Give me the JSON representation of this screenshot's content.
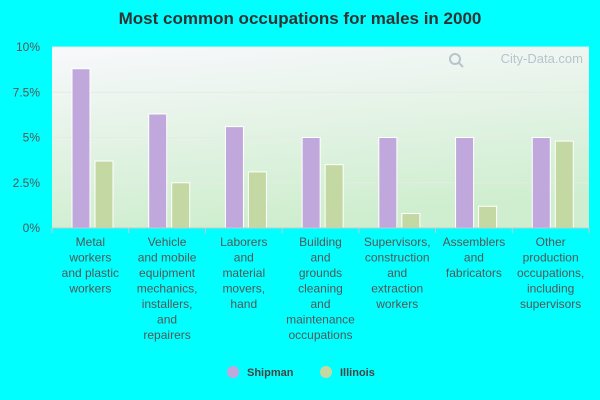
{
  "chart_data": {
    "type": "bar",
    "title": "Most common occupations for males in 2000",
    "categories": [
      [
        "Metal",
        "workers",
        "and plastic",
        "workers"
      ],
      [
        "Vehicle",
        "and mobile",
        "equipment",
        "mechanics,",
        "installers,",
        "and",
        "repairers"
      ],
      [
        "Laborers",
        "and",
        "material",
        "movers,",
        "hand"
      ],
      [
        "Building",
        "and",
        "grounds",
        "cleaning",
        "and",
        "maintenance",
        "occupations"
      ],
      [
        "Supervisors,",
        "construction",
        "and",
        "extraction",
        "workers"
      ],
      [
        "Assemblers",
        "and",
        "fabricators"
      ],
      [
        "Other",
        "production",
        "occupations,",
        "including",
        "supervisors"
      ]
    ],
    "series": [
      {
        "name": "Shipman",
        "color": "#c0a8dc",
        "values": [
          8.8,
          6.3,
          5.6,
          5.0,
          5.0,
          5.0,
          5.0
        ]
      },
      {
        "name": "Illinois",
        "color": "#c4d8a4",
        "values": [
          3.7,
          2.5,
          3.1,
          3.5,
          0.8,
          1.2,
          4.8
        ]
      }
    ],
    "yticks": [
      "0%",
      "2.5%",
      "5%",
      "7.5%",
      "10%"
    ],
    "ytick_values": [
      0,
      2.5,
      5,
      7.5,
      10
    ],
    "ylim": [
      0,
      10
    ],
    "xlabel": "",
    "ylabel": "",
    "grid": true,
    "legend_position": "bottom-center"
  },
  "watermark": "City-Data.com",
  "colors": {
    "background": "#00ffff",
    "plot_gradient_top": "#f6f6fb",
    "plot_gradient_bottom": "#d4f2d4"
  }
}
